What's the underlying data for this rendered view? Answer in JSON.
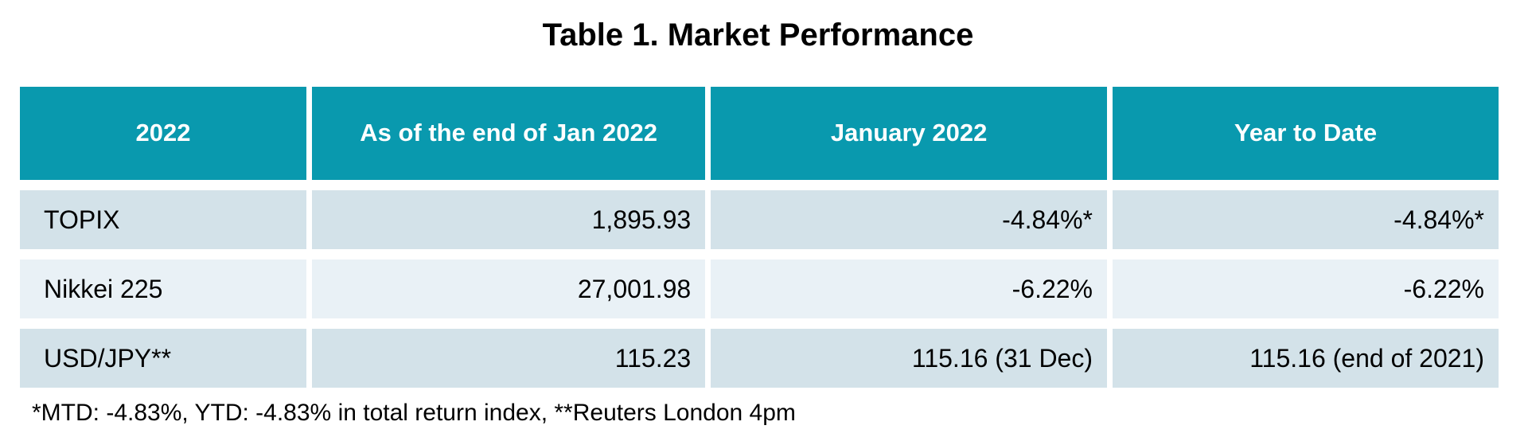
{
  "title": "Table 1. Market Performance",
  "table": {
    "columns": [
      {
        "label": "2022"
      },
      {
        "label": "As of the end of Jan 2022"
      },
      {
        "label": "January 2022"
      },
      {
        "label": "Year to Date"
      }
    ],
    "rows": [
      {
        "cells": [
          "TOPIX",
          "1,895.93",
          "-4.84%*",
          "-4.84%*"
        ]
      },
      {
        "cells": [
          "Nikkei 225",
          "27,001.98",
          "-6.22%",
          "-6.22%"
        ]
      },
      {
        "cells": [
          "USD/JPY**",
          "115.23",
          "115.16 (31 Dec)",
          "115.16 (end of 2021)"
        ]
      }
    ]
  },
  "footnote": "*MTD: -4.83%, YTD: -4.83% in total return index, **Reuters London 4pm",
  "colors": {
    "header_bg": "#0999AE",
    "header_text": "#FFFFFF",
    "row_odd_bg": "#D3E2E9",
    "row_even_bg": "#E9F1F6",
    "text": "#000000"
  },
  "chart_data": {
    "type": "table",
    "title": "Table 1. Market Performance",
    "columns": [
      "2022",
      "As of the end of Jan 2022",
      "January 2022",
      "Year to Date"
    ],
    "rows": [
      [
        "TOPIX",
        "1,895.93",
        "-4.84%*",
        "-4.84%*"
      ],
      [
        "Nikkei 225",
        "27,001.98",
        "-6.22%",
        "-6.22%"
      ],
      [
        "USD/JPY**",
        "115.23",
        "115.16 (31 Dec)",
        "115.16 (end of 2021)"
      ]
    ],
    "footnote": "*MTD: -4.83%, YTD: -4.83% in total return index, **Reuters London 4pm"
  }
}
